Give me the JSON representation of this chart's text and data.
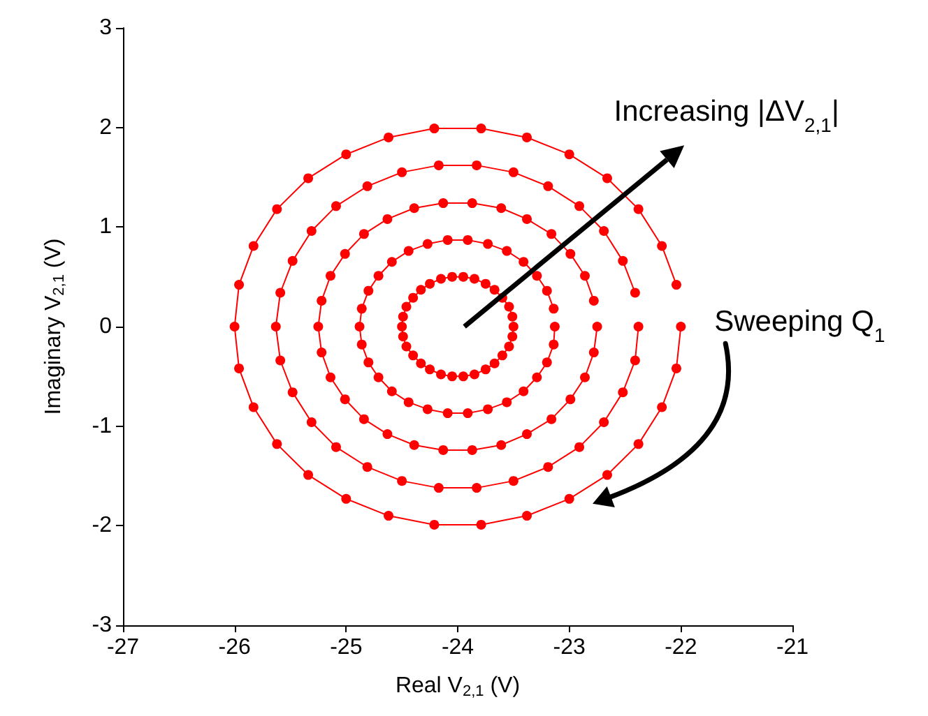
{
  "chart_data": {
    "type": "line",
    "xlabel": "Real V$_{2,1}$ (V)",
    "ylabel": "Imaginary V$_{2,1}$ (V)",
    "xlim": [
      -27,
      -21
    ],
    "xticks": [
      -27,
      -26,
      -25,
      -24,
      -23,
      -22,
      -21
    ],
    "ylim": [
      -3,
      3
    ],
    "yticks": [
      -3,
      -2,
      -1,
      0,
      1,
      2,
      3
    ],
    "marker": "circle",
    "annotations": [
      "Increasing |ΔV$_{2,1}$|",
      "Sweeping Q$_{1}$"
    ],
    "series": [
      {
        "color": "#ff0000",
        "x": [
          -23.5,
          -23.51,
          -23.54,
          -23.6,
          -23.67,
          -23.75,
          -23.85,
          -23.95,
          -24.05,
          -24.15,
          -24.25,
          -24.33,
          -24.4,
          -24.46,
          -24.49,
          -24.5,
          -24.49,
          -24.46,
          -24.4,
          -24.33,
          -24.25,
          -24.15,
          -24.05,
          -23.95,
          -23.85,
          -23.75,
          -23.67,
          -23.6,
          -23.54,
          -23.51
        ],
        "values": [
          0,
          -0.1,
          -0.2,
          -0.29,
          -0.37,
          -0.43,
          -0.48,
          -0.5,
          -0.5,
          -0.48,
          -0.43,
          -0.37,
          -0.29,
          -0.2,
          -0.1,
          0,
          0.1,
          0.2,
          0.29,
          0.37,
          0.43,
          0.48,
          0.5,
          0.5,
          0.48,
          0.43,
          0.37,
          0.29,
          0.2,
          0.1
        ]
      },
      {
        "color": "#ff0000",
        "x": [
          -23.13,
          -23.14,
          -23.2,
          -23.29,
          -23.41,
          -23.56,
          -23.73,
          -23.91,
          -24.09,
          -24.27,
          -24.44,
          -24.59,
          -24.71,
          -24.8,
          -24.86,
          -24.88,
          -24.86,
          -24.8,
          -24.71,
          -24.59,
          -24.44,
          -24.27,
          -24.09,
          -23.91,
          -23.73,
          -23.56,
          -23.41,
          -23.29,
          -23.2,
          -23.14
        ],
        "values": [
          0,
          -0.18,
          -0.36,
          -0.51,
          -0.65,
          -0.76,
          -0.83,
          -0.87,
          -0.87,
          -0.83,
          -0.76,
          -0.65,
          -0.51,
          -0.36,
          -0.18,
          0,
          0.18,
          0.36,
          0.51,
          0.65,
          0.76,
          0.83,
          0.87,
          0.87,
          0.83,
          0.76,
          0.65,
          0.51,
          0.36,
          0.18
        ]
      },
      {
        "color": "#ff0000",
        "x": [
          -22.75,
          -22.78,
          -22.86,
          -22.99,
          -23.16,
          -23.38,
          -23.61,
          -23.87,
          -24.13,
          -24.39,
          -24.63,
          -24.84,
          -25.01,
          -25.14,
          -25.22,
          -25.25,
          -25.22,
          -25.14,
          -25.01,
          -24.84,
          -24.63,
          -24.39,
          -24.13,
          -23.87,
          -23.61,
          -23.38,
          -23.16,
          -22.99,
          -22.86,
          -22.78
        ],
        "values": [
          0,
          -0.26,
          -0.51,
          -0.73,
          -0.93,
          -1.08,
          -1.19,
          -1.24,
          -1.24,
          -1.19,
          -1.08,
          -0.93,
          -0.73,
          -0.51,
          -0.26,
          0,
          0.26,
          0.51,
          0.73,
          0.93,
          1.08,
          1.19,
          1.24,
          1.24,
          1.19,
          1.08,
          0.93,
          0.73,
          0.51,
          0.26
        ]
      },
      {
        "color": "#ff0000",
        "x": [
          -22.38,
          -22.41,
          -22.52,
          -22.69,
          -22.91,
          -23.19,
          -23.5,
          -23.83,
          -24.17,
          -24.5,
          -24.81,
          -25.09,
          -25.31,
          -25.48,
          -25.59,
          -25.63,
          -25.59,
          -25.48,
          -25.31,
          -25.09,
          -24.81,
          -24.5,
          -24.17,
          -23.83,
          -23.5,
          -23.19,
          -22.91,
          -22.69,
          -22.52,
          -22.41
        ],
        "values": [
          0,
          -0.34,
          -0.66,
          -0.96,
          -1.21,
          -1.41,
          -1.55,
          -1.62,
          -1.62,
          -1.55,
          -1.41,
          -1.21,
          -0.96,
          -0.66,
          -0.34,
          0,
          0.34,
          0.66,
          0.96,
          1.21,
          1.41,
          1.55,
          1.62,
          1.62,
          1.55,
          1.41,
          1.21,
          0.96,
          0.66,
          0.34
        ]
      },
      {
        "color": "#ff0000",
        "x": [
          -22,
          -22.04,
          -22.17,
          -22.38,
          -22.66,
          -23,
          -23.38,
          -23.79,
          -24.21,
          -24.62,
          -25,
          -25.34,
          -25.62,
          -25.83,
          -25.96,
          -26,
          -25.96,
          -25.83,
          -25.62,
          -25.34,
          -25,
          -24.62,
          -24.21,
          -23.79,
          -23.38,
          -23,
          -22.66,
          -22.38,
          -22.17,
          -22.04
        ],
        "values": [
          0,
          -0.42,
          -0.81,
          -1.18,
          -1.49,
          -1.73,
          -1.9,
          -1.99,
          -1.99,
          -1.9,
          -1.73,
          -1.49,
          -1.18,
          -0.81,
          -0.42,
          0,
          0.42,
          0.81,
          1.18,
          1.49,
          1.73,
          1.9,
          1.99,
          1.99,
          1.9,
          1.73,
          1.49,
          1.18,
          0.81,
          0.42
        ]
      }
    ]
  }
}
